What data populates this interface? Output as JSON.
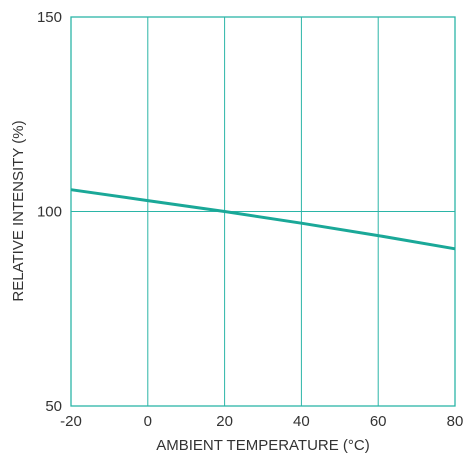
{
  "chart_data": {
    "type": "line",
    "title": "",
    "xlabel": "AMBIENT TEMPERATURE (°C)",
    "ylabel": "RELATIVE INTENSITY (%)",
    "xlim": [
      -20,
      80
    ],
    "ylim": [
      50,
      150
    ],
    "x_ticks": [
      -20,
      0,
      20,
      40,
      60,
      80
    ],
    "x_tick_labels": [
      "-20",
      "0",
      "20",
      "40",
      "60",
      "80"
    ],
    "y_ticks": [
      50,
      100,
      150
    ],
    "y_tick_labels": [
      "50",
      "100",
      "150"
    ],
    "grid": "on",
    "legend": "none",
    "series": [
      {
        "x": [
          -20,
          0,
          20,
          40,
          60,
          80
        ],
        "y": [
          105.6,
          102.8,
          100.0,
          97.0,
          93.8,
          90.4
        ]
      }
    ],
    "colors": {
      "frame": "#2bb5a7",
      "grid": "#2bb5a7",
      "line": "#1aa898",
      "text": "#333333"
    }
  }
}
